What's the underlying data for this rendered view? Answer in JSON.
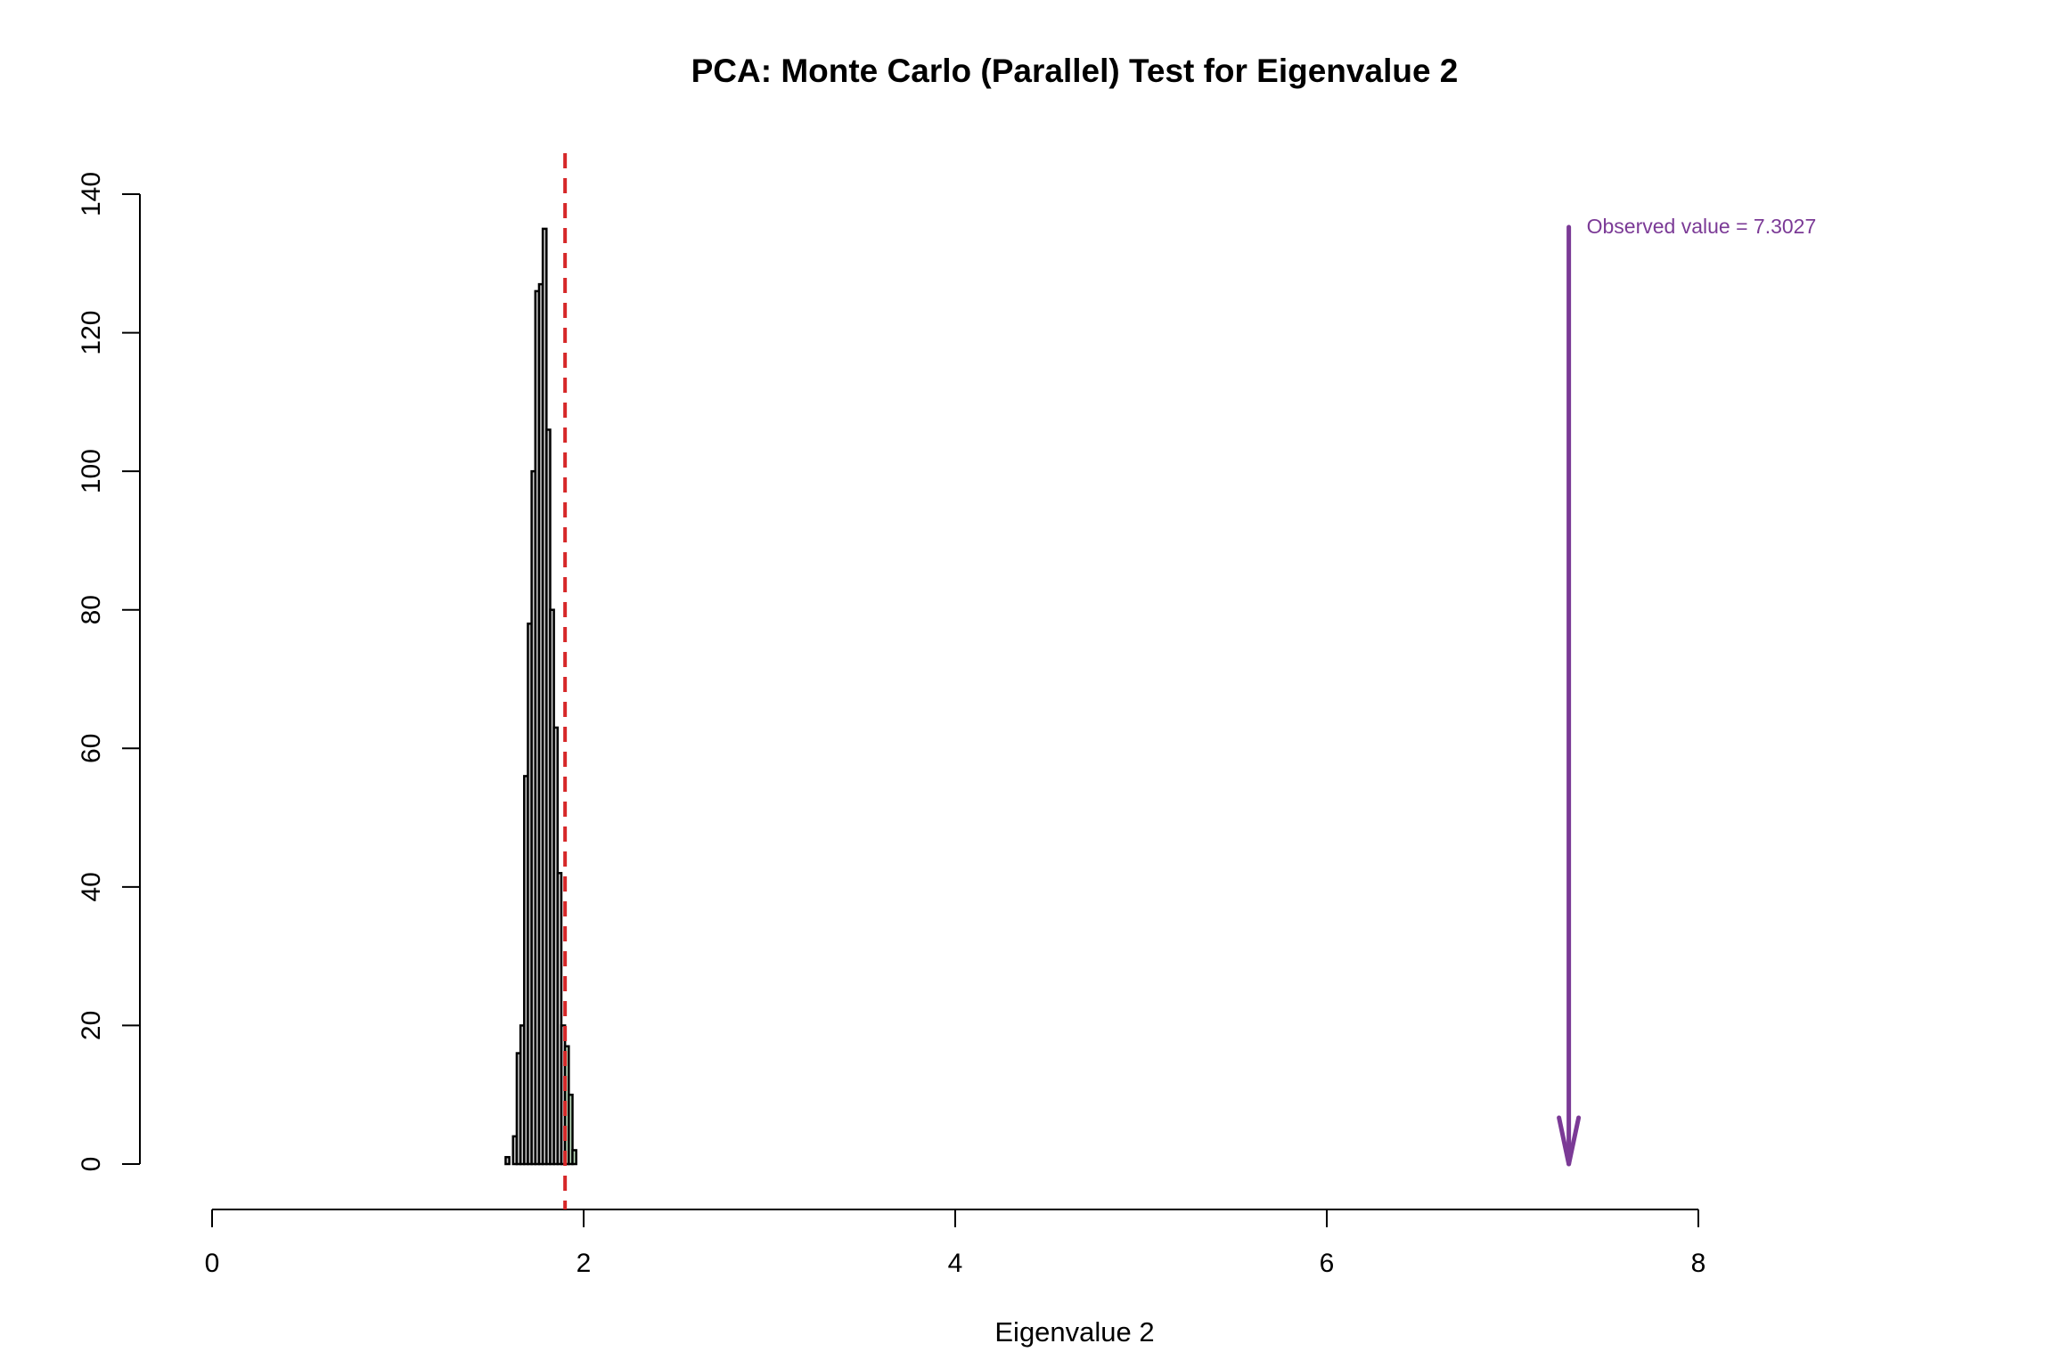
{
  "chart_data": {
    "type": "bar",
    "subtype": "histogram",
    "title": "PCA: Monte Carlo (Parallel) Test for Eigenvalue 2",
    "xlabel": "Eigenvalue 2",
    "ylabel": "",
    "xlim": [
      0,
      8
    ],
    "ylim": [
      0,
      140
    ],
    "x_ticks": [
      "0",
      "2",
      "4",
      "6",
      "8"
    ],
    "y_ticks": [
      "0",
      "20",
      "40",
      "60",
      "80",
      "100",
      "120",
      "140"
    ],
    "bin_width": 0.02,
    "bins": [
      {
        "x0": 1.58,
        "x1": 1.6,
        "count": 1
      },
      {
        "x0": 1.62,
        "x1": 1.64,
        "count": 4
      },
      {
        "x0": 1.64,
        "x1": 1.66,
        "count": 16
      },
      {
        "x0": 1.66,
        "x1": 1.68,
        "count": 20
      },
      {
        "x0": 1.68,
        "x1": 1.7,
        "count": 56
      },
      {
        "x0": 1.7,
        "x1": 1.72,
        "count": 78
      },
      {
        "x0": 1.72,
        "x1": 1.74,
        "count": 100
      },
      {
        "x0": 1.74,
        "x1": 1.76,
        "count": 126
      },
      {
        "x0": 1.76,
        "x1": 1.78,
        "count": 127
      },
      {
        "x0": 1.78,
        "x1": 1.8,
        "count": 135
      },
      {
        "x0": 1.8,
        "x1": 1.82,
        "count": 106
      },
      {
        "x0": 1.82,
        "x1": 1.84,
        "count": 80
      },
      {
        "x0": 1.84,
        "x1": 1.86,
        "count": 63
      },
      {
        "x0": 1.86,
        "x1": 1.88,
        "count": 42
      },
      {
        "x0": 1.88,
        "x1": 1.9,
        "count": 20
      },
      {
        "x0": 1.9,
        "x1": 1.92,
        "count": 17
      },
      {
        "x0": 1.92,
        "x1": 1.94,
        "count": 10
      },
      {
        "x0": 1.94,
        "x1": 1.96,
        "count": 2
      }
    ],
    "reference_line": {
      "x": 1.9,
      "style": "dashed",
      "color": "#d62728"
    },
    "observed": {
      "x": 7.3027,
      "label": "Observed value = 7.3027",
      "color": "#7b3a96"
    },
    "colors": {
      "bar_fill": "#c9c9c9",
      "bar_upper_tail_fill": "#bfe0c0",
      "bar_stroke": "#000000",
      "axis": "#000000"
    },
    "grid": false,
    "legend": "none"
  }
}
